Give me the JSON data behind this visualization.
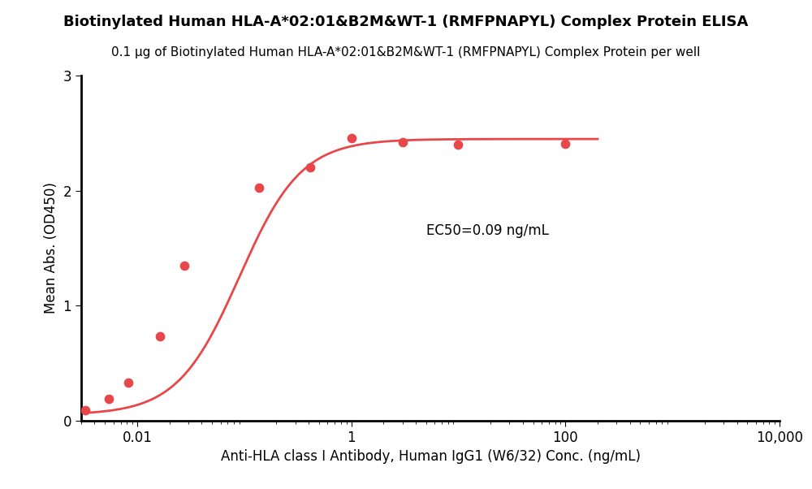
{
  "title": "Biotinylated Human HLA-A*02:01&B2M&WT-1 (RMFPNAPYL) Complex Protein ELISA",
  "subtitle": "0.1 μg of Biotinylated Human HLA-A*02:01&B2M&WT-1 (RMFPNAPYL) Complex Protein per well",
  "xlabel": "Anti-HLA class I Antibody, Human IgG1 (W6/32) Conc. (ng/mL)",
  "ylabel": "Mean Abs. (OD450)",
  "ec50_label": "EC50=0.09 ng/mL",
  "ec50_x": 5.0,
  "ec50_y": 1.65,
  "data_x": [
    0.00329,
    0.00548,
    0.0082,
    0.0164,
    0.0274,
    0.137,
    0.411,
    1.0,
    3.0,
    10.0,
    100.0
  ],
  "data_y": [
    0.09,
    0.19,
    0.33,
    0.73,
    1.35,
    2.03,
    2.2,
    2.46,
    2.42,
    2.4,
    2.41
  ],
  "curve_color": "#e8474a",
  "dot_color": "#e8474a",
  "ylim": [
    0,
    3
  ],
  "yticks": [
    0,
    1,
    2,
    3
  ],
  "title_fontsize": 13,
  "subtitle_fontsize": 11,
  "label_fontsize": 12,
  "tick_fontsize": 12,
  "ec50_fontsize": 12,
  "background_color": "#ffffff",
  "x_tick_positions": [
    0.01,
    1,
    100,
    10000
  ],
  "x_tick_labels": [
    "0.01",
    "1",
    "100",
    "10,000"
  ],
  "xmin": 0.003,
  "xmax": 10000
}
